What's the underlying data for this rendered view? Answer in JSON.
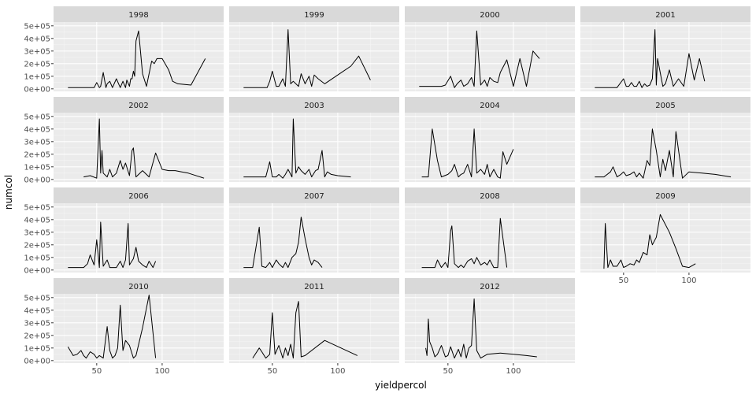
{
  "chart_data": {
    "type": "line",
    "facet_by": "year",
    "xlabel": "yieldpercol",
    "ylabel": "numcol",
    "x_ticks": [
      50,
      100
    ],
    "y_ticks": [
      0,
      100000,
      200000,
      300000,
      400000,
      500000
    ],
    "y_tick_labels": [
      "0e+00",
      "1e+05",
      "2e+05",
      "3e+05",
      "4e+05",
      "5e+05"
    ],
    "xlim": [
      17,
      147
    ],
    "ylim": [
      -20000,
      530000
    ],
    "grid": true,
    "panels": [
      {
        "title": "1998",
        "x": [
          28,
          35,
          45,
          48,
          50,
          52,
          53,
          55,
          57,
          58,
          60,
          62,
          65,
          68,
          70,
          72,
          73,
          75,
          76,
          77,
          78,
          79,
          80,
          82,
          85,
          88,
          92,
          94,
          96,
          100,
          105,
          108,
          112,
          122,
          133
        ],
        "y": [
          10000,
          10000,
          10000,
          10000,
          50000,
          10000,
          20000,
          130000,
          10000,
          40000,
          60000,
          10000,
          80000,
          10000,
          60000,
          10000,
          70000,
          20000,
          80000,
          80000,
          140000,
          100000,
          380000,
          460000,
          120000,
          20000,
          220000,
          200000,
          240000,
          240000,
          150000,
          60000,
          40000,
          30000,
          240000
        ]
      },
      {
        "title": "1999",
        "x": [
          28,
          35,
          44,
          46,
          48,
          50,
          53,
          55,
          58,
          60,
          62,
          64,
          66,
          68,
          70,
          72,
          75,
          78,
          80,
          82,
          85,
          90,
          100,
          110,
          116,
          125
        ],
        "y": [
          10000,
          10000,
          10000,
          10000,
          60000,
          140000,
          20000,
          20000,
          80000,
          20000,
          470000,
          40000,
          60000,
          40000,
          20000,
          120000,
          40000,
          100000,
          20000,
          110000,
          80000,
          40000,
          110000,
          180000,
          260000,
          70000
        ]
      },
      {
        "title": "2000",
        "x": [
          28,
          35,
          45,
          48,
          52,
          55,
          57,
          60,
          62,
          65,
          68,
          70,
          72,
          75,
          78,
          80,
          82,
          85,
          88,
          90,
          95,
          100,
          105,
          110,
          115,
          120
        ],
        "y": [
          20000,
          20000,
          20000,
          30000,
          100000,
          10000,
          40000,
          70000,
          20000,
          40000,
          90000,
          20000,
          460000,
          30000,
          70000,
          20000,
          90000,
          60000,
          50000,
          130000,
          230000,
          20000,
          240000,
          20000,
          300000,
          240000
        ]
      },
      {
        "title": "2001",
        "x": [
          28,
          35,
          45,
          50,
          52,
          54,
          56,
          58,
          60,
          62,
          64,
          66,
          68,
          70,
          72,
          74,
          75,
          76,
          80,
          82,
          85,
          88,
          92,
          96,
          100,
          104,
          108,
          112
        ],
        "y": [
          10000,
          10000,
          10000,
          80000,
          20000,
          20000,
          50000,
          20000,
          20000,
          60000,
          10000,
          40000,
          20000,
          30000,
          80000,
          470000,
          30000,
          240000,
          20000,
          40000,
          150000,
          20000,
          80000,
          20000,
          280000,
          70000,
          240000,
          60000
        ]
      },
      {
        "title": "2002",
        "x": [
          40,
          45,
          50,
          52,
          53,
          54,
          55,
          58,
          60,
          62,
          65,
          68,
          70,
          72,
          75,
          77,
          78,
          80,
          85,
          90,
          95,
          100,
          105,
          110,
          115,
          120,
          132
        ],
        "y": [
          20000,
          30000,
          10000,
          480000,
          50000,
          230000,
          50000,
          20000,
          80000,
          20000,
          50000,
          150000,
          80000,
          130000,
          30000,
          230000,
          250000,
          20000,
          70000,
          20000,
          210000,
          80000,
          70000,
          70000,
          60000,
          50000,
          10000
        ]
      },
      {
        "title": "2003",
        "x": [
          28,
          35,
          42,
          45,
          48,
          50,
          53,
          55,
          58,
          60,
          62,
          65,
          66,
          68,
          70,
          72,
          75,
          78,
          80,
          83,
          85,
          88,
          90,
          92,
          95,
          100,
          110
        ],
        "y": [
          20000,
          20000,
          20000,
          20000,
          140000,
          20000,
          20000,
          40000,
          10000,
          40000,
          80000,
          20000,
          480000,
          50000,
          100000,
          70000,
          40000,
          80000,
          20000,
          70000,
          80000,
          230000,
          20000,
          60000,
          40000,
          30000,
          20000
        ]
      },
      {
        "title": "2004",
        "x": [
          30,
          35,
          38,
          42,
          45,
          50,
          53,
          55,
          58,
          60,
          62,
          65,
          68,
          70,
          72,
          75,
          78,
          80,
          82,
          85,
          88,
          90,
          92,
          95,
          100
        ],
        "y": [
          20000,
          20000,
          400000,
          150000,
          20000,
          40000,
          70000,
          120000,
          20000,
          40000,
          50000,
          120000,
          20000,
          400000,
          50000,
          80000,
          40000,
          120000,
          20000,
          80000,
          20000,
          10000,
          220000,
          120000,
          240000
        ]
      },
      {
        "title": "2005",
        "x": [
          28,
          35,
          40,
          42,
          45,
          48,
          50,
          52,
          55,
          58,
          60,
          62,
          65,
          68,
          70,
          72,
          75,
          78,
          80,
          82,
          85,
          88,
          90,
          95,
          100,
          110,
          120,
          132
        ],
        "y": [
          20000,
          20000,
          60000,
          100000,
          20000,
          40000,
          60000,
          30000,
          40000,
          60000,
          20000,
          50000,
          10000,
          150000,
          110000,
          400000,
          230000,
          20000,
          160000,
          70000,
          230000,
          20000,
          380000,
          10000,
          60000,
          50000,
          40000,
          20000
        ]
      },
      {
        "title": "2006",
        "x": [
          28,
          35,
          40,
          43,
          45,
          48,
          50,
          52,
          53,
          55,
          58,
          60,
          62,
          65,
          68,
          70,
          72,
          74,
          75,
          78,
          80,
          82,
          85,
          88,
          90,
          93,
          95
        ],
        "y": [
          20000,
          20000,
          20000,
          50000,
          120000,
          40000,
          240000,
          20000,
          380000,
          30000,
          80000,
          20000,
          20000,
          20000,
          70000,
          20000,
          80000,
          370000,
          40000,
          90000,
          180000,
          70000,
          40000,
          20000,
          70000,
          20000,
          70000
        ]
      },
      {
        "title": "2007",
        "x": [
          28,
          30,
          35,
          40,
          42,
          45,
          48,
          50,
          53,
          55,
          58,
          60,
          62,
          65,
          68,
          70,
          72,
          75,
          78,
          80,
          82,
          85,
          88
        ],
        "y": [
          20000,
          20000,
          20000,
          340000,
          30000,
          20000,
          60000,
          20000,
          80000,
          50000,
          20000,
          60000,
          20000,
          100000,
          130000,
          220000,
          420000,
          250000,
          100000,
          40000,
          80000,
          60000,
          20000
        ]
      },
      {
        "title": "2008",
        "x": [
          30,
          35,
          40,
          42,
          45,
          48,
          50,
          52,
          53,
          55,
          58,
          60,
          62,
          65,
          68,
          70,
          72,
          75,
          78,
          80,
          82,
          85,
          88,
          90,
          95
        ],
        "y": [
          20000,
          20000,
          20000,
          80000,
          20000,
          60000,
          20000,
          310000,
          350000,
          50000,
          20000,
          40000,
          20000,
          70000,
          90000,
          50000,
          100000,
          40000,
          60000,
          40000,
          80000,
          20000,
          20000,
          410000,
          20000
        ]
      },
      {
        "title": "2009",
        "x": [
          35,
          36,
          38,
          40,
          42,
          45,
          48,
          50,
          52,
          55,
          58,
          60,
          62,
          65,
          68,
          70,
          72,
          75,
          78,
          85,
          90,
          95,
          100,
          105
        ],
        "y": [
          10000,
          370000,
          20000,
          80000,
          30000,
          30000,
          80000,
          20000,
          30000,
          50000,
          40000,
          80000,
          60000,
          140000,
          120000,
          280000,
          200000,
          260000,
          440000,
          300000,
          170000,
          30000,
          20000,
          50000
        ]
      },
      {
        "title": "2010",
        "x": [
          28,
          32,
          35,
          38,
          40,
          42,
          45,
          48,
          50,
          52,
          55,
          58,
          60,
          62,
          64,
          66,
          68,
          70,
          72,
          75,
          78,
          80,
          85,
          90,
          95
        ],
        "y": [
          110000,
          40000,
          50000,
          80000,
          40000,
          20000,
          70000,
          50000,
          20000,
          40000,
          20000,
          270000,
          80000,
          20000,
          40000,
          100000,
          440000,
          80000,
          160000,
          120000,
          20000,
          40000,
          260000,
          520000,
          20000
        ]
      },
      {
        "title": "2011",
        "x": [
          35,
          40,
          42,
          45,
          48,
          50,
          52,
          55,
          58,
          60,
          62,
          64,
          66,
          68,
          70,
          72,
          75,
          90,
          115
        ],
        "y": [
          20000,
          100000,
          70000,
          20000,
          50000,
          380000,
          50000,
          120000,
          20000,
          100000,
          40000,
          130000,
          20000,
          380000,
          470000,
          30000,
          40000,
          160000,
          40000
        ]
      },
      {
        "title": "2012",
        "x": [
          33,
          34,
          35,
          36,
          38,
          40,
          42,
          45,
          48,
          50,
          52,
          55,
          58,
          60,
          62,
          64,
          66,
          68,
          70,
          72,
          75,
          80,
          90,
          100,
          110,
          118
        ],
        "y": [
          100000,
          40000,
          330000,
          150000,
          100000,
          30000,
          50000,
          120000,
          30000,
          40000,
          110000,
          20000,
          90000,
          30000,
          130000,
          20000,
          100000,
          120000,
          490000,
          80000,
          20000,
          50000,
          60000,
          50000,
          40000,
          30000
        ]
      }
    ]
  }
}
